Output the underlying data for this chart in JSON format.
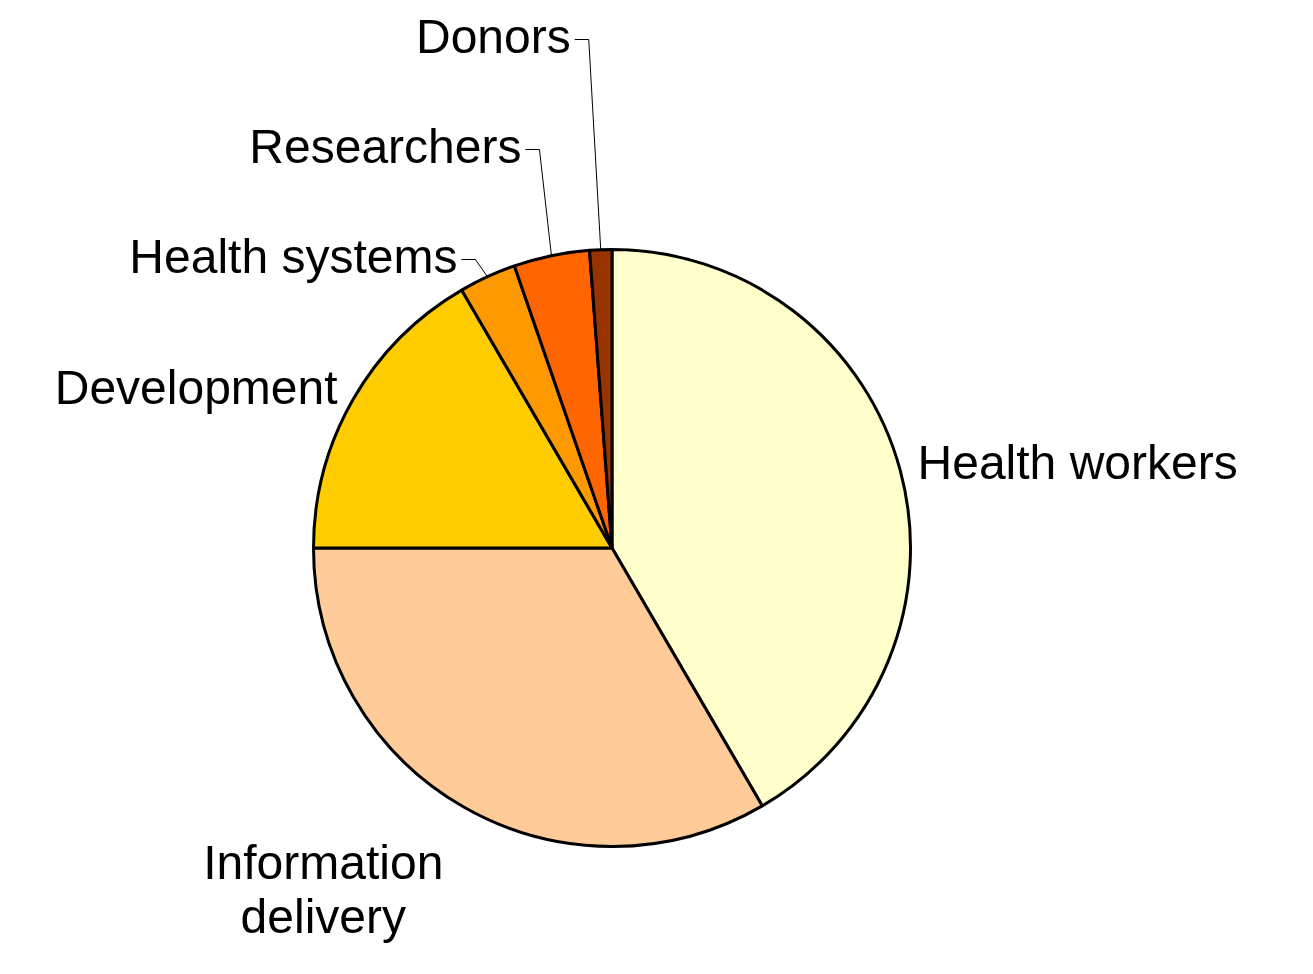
{
  "chart_data": {
    "type": "pie",
    "categories": [
      "Health workers",
      "Information delivery",
      "Development",
      "Health systems",
      "Researchers",
      "Donors"
    ],
    "values": [
      41.6,
      33.4,
      16.6,
      3.1,
      4.1,
      1.2
    ],
    "colors": [
      "#ffffcc",
      "#ffcc99",
      "#ffcc00",
      "#ff9900",
      "#ff6600",
      "#993300"
    ]
  }
}
